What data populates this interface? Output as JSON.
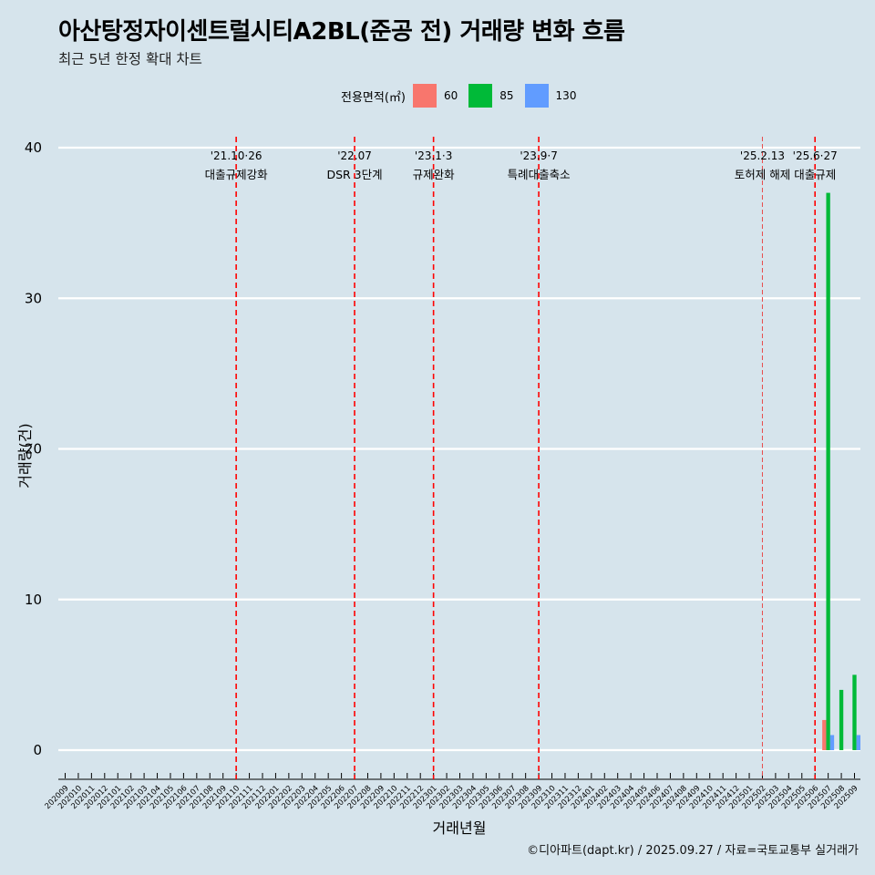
{
  "header": {
    "title": "아산탕정자이센트럴시티A2BL(준공 전) 거래량 변화 흐름",
    "subtitle": "최근 5년 한정 확대 차트"
  },
  "legend": {
    "title": "전용면적(㎡)",
    "items": [
      {
        "label": "60",
        "color": "#f8766d"
      },
      {
        "label": "85",
        "color": "#00ba38"
      },
      {
        "label": "130",
        "color": "#619cff"
      }
    ]
  },
  "footer": "©디아파트(dapt.kr) / 2025.09.27 / 자료=국토교통부 실거래가",
  "chart_data": {
    "type": "bar",
    "title": "아산탕정자이센트럴시티A2BL(준공 전) 거래량 변화 흐름",
    "xlabel": "거래년월",
    "ylabel": "거래량(건)",
    "ylim": [
      0,
      40
    ],
    "yticks": [
      0,
      10,
      20,
      30,
      40
    ],
    "grid": true,
    "legend_position": "top",
    "categories": [
      "202009",
      "202010",
      "202011",
      "202012",
      "202101",
      "202102",
      "202103",
      "202104",
      "202105",
      "202106",
      "202107",
      "202108",
      "202109",
      "202110",
      "202111",
      "202112",
      "202201",
      "202202",
      "202203",
      "202204",
      "202205",
      "202206",
      "202207",
      "202208",
      "202209",
      "202210",
      "202211",
      "202212",
      "202301",
      "202302",
      "202303",
      "202304",
      "202305",
      "202306",
      "202307",
      "202308",
      "202309",
      "202310",
      "202311",
      "202312",
      "202401",
      "202402",
      "202403",
      "202404",
      "202405",
      "202406",
      "202407",
      "202408",
      "202409",
      "202410",
      "202411",
      "202412",
      "202501",
      "202502",
      "202503",
      "202504",
      "202505",
      "202506",
      "202507",
      "202508",
      "202509"
    ],
    "series": [
      {
        "name": "60",
        "color": "#f8766d",
        "values": {
          "202507": 2
        }
      },
      {
        "name": "85",
        "color": "#00ba38",
        "values": {
          "202507": 37,
          "202508": 4,
          "202509": 5
        }
      },
      {
        "name": "130",
        "color": "#619cff",
        "values": {
          "202507": 1,
          "202509": 1
        }
      }
    ],
    "events": [
      {
        "category": "202110",
        "date": "'21.10·26",
        "label": "대출규제강화",
        "style": "dashed"
      },
      {
        "category": "202207",
        "date": "'22.07",
        "label": "DSR 3단계",
        "style": "dashed"
      },
      {
        "category": "202301",
        "date": "'23.1·3",
        "label": "규제완화",
        "style": "dashed"
      },
      {
        "category": "202309",
        "date": "'23.9·7",
        "label": "특례대출축소",
        "style": "dashed"
      },
      {
        "category": "202502",
        "date": "'25.2.13",
        "label": "토허제 해제",
        "style": "thin"
      },
      {
        "category": "202506",
        "date": "'25.6·27",
        "label": "대출규제",
        "style": "dashed"
      }
    ]
  }
}
